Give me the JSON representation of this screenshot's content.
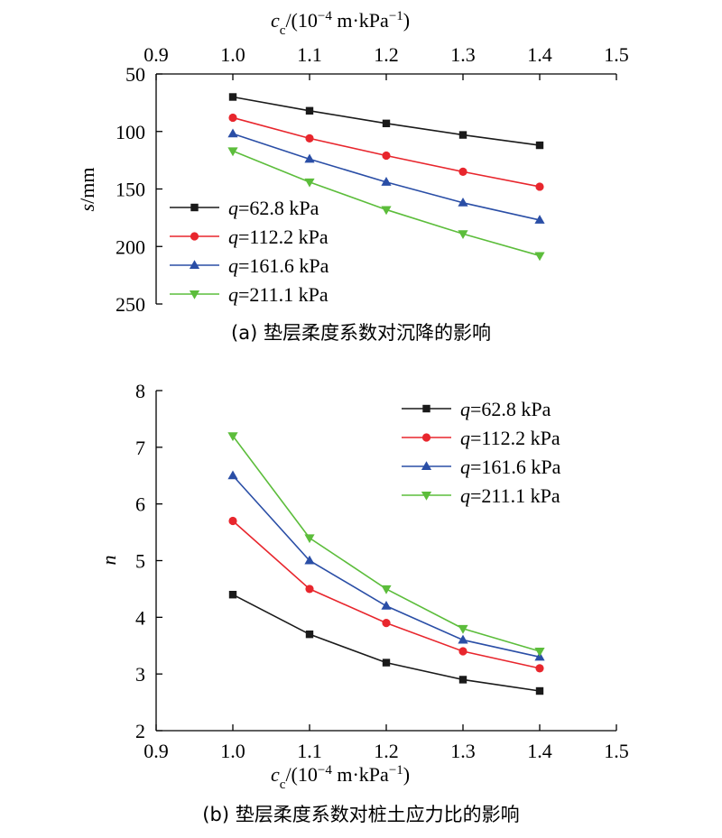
{
  "chart_data": [
    {
      "type": "line",
      "caption": "(a) 垫层柔度系数对沉降的影响",
      "xlabel": {
        "var": "c",
        "sub": "c",
        "unit_open": "/(10",
        "unit_exp": "−4",
        "unit_mid": " m·kPa",
        "unit_exp2": "−1",
        "unit_close": ")"
      },
      "ylabel": {
        "var": "s",
        "unit": "/mm"
      },
      "x_ticks": [
        "0.9",
        "1.0",
        "1.1",
        "1.2",
        "1.3",
        "1.4",
        "1.5"
      ],
      "y_ticks": [
        "50",
        "100",
        "150",
        "200",
        "250"
      ],
      "xlim": [
        0.9,
        1.5
      ],
      "ylim": [
        50,
        250
      ],
      "y_inverted": true,
      "x_axis_position": "top",
      "legend_position": "bottom-left",
      "x": [
        1.0,
        1.1,
        1.2,
        1.3,
        1.4
      ],
      "series": [
        {
          "name": "q=62.8 kPa",
          "q": "q",
          "rest": "=62.8 kPa",
          "color": "#1a1a1a",
          "marker": "square",
          "values": [
            70,
            82,
            93,
            103,
            112
          ]
        },
        {
          "name": "q=112.2 kPa",
          "q": "q",
          "rest": "=112.2 kPa",
          "color": "#e8262d",
          "marker": "circle",
          "values": [
            88,
            106,
            121,
            135,
            148
          ]
        },
        {
          "name": "q=161.6 kPa",
          "q": "q",
          "rest": "=161.6 kPa",
          "color": "#2a4ea6",
          "marker": "triangle-up",
          "values": [
            102,
            124,
            144,
            162,
            177
          ]
        },
        {
          "name": "q=211.1 kPa",
          "q": "q",
          "rest": "=211.1 kPa",
          "color": "#5cbd3b",
          "marker": "triangle-down",
          "values": [
            117,
            144,
            168,
            189,
            208
          ]
        }
      ]
    },
    {
      "type": "line",
      "caption": "(b) 垫层柔度系数对桩土应力比的影响",
      "xlabel": {
        "var": "c",
        "sub": "c",
        "unit_open": "/(10",
        "unit_exp": "−4",
        "unit_mid": " m·kPa",
        "unit_exp2": "−1",
        "unit_close": ")"
      },
      "ylabel": {
        "var": "n",
        "unit": ""
      },
      "x_ticks": [
        "0.9",
        "1.0",
        "1.1",
        "1.2",
        "1.3",
        "1.4",
        "1.5"
      ],
      "y_ticks": [
        "2",
        "3",
        "4",
        "5",
        "6",
        "7",
        "8"
      ],
      "xlim": [
        0.9,
        1.5
      ],
      "ylim": [
        2,
        8
      ],
      "y_inverted": false,
      "x_axis_position": "bottom",
      "legend_position": "top-right",
      "x": [
        1.0,
        1.1,
        1.2,
        1.3,
        1.4
      ],
      "series": [
        {
          "name": "q=62.8 kPa",
          "q": "q",
          "rest": "=62.8 kPa",
          "color": "#1a1a1a",
          "marker": "square",
          "values": [
            4.4,
            3.7,
            3.2,
            2.9,
            2.7
          ]
        },
        {
          "name": "q=112.2 kPa",
          "q": "q",
          "rest": "=112.2 kPa",
          "color": "#e8262d",
          "marker": "circle",
          "values": [
            5.7,
            4.5,
            3.9,
            3.4,
            3.1
          ]
        },
        {
          "name": "q=161.6 kPa",
          "q": "q",
          "rest": "=161.6 kPa",
          "color": "#2a4ea6",
          "marker": "triangle-up",
          "values": [
            6.5,
            5.0,
            4.2,
            3.6,
            3.3
          ]
        },
        {
          "name": "q=211.1 kPa",
          "q": "q",
          "rest": "=211.1 kPa",
          "color": "#5cbd3b",
          "marker": "triangle-down",
          "values": [
            7.2,
            5.4,
            4.5,
            3.8,
            3.4
          ]
        }
      ]
    }
  ]
}
